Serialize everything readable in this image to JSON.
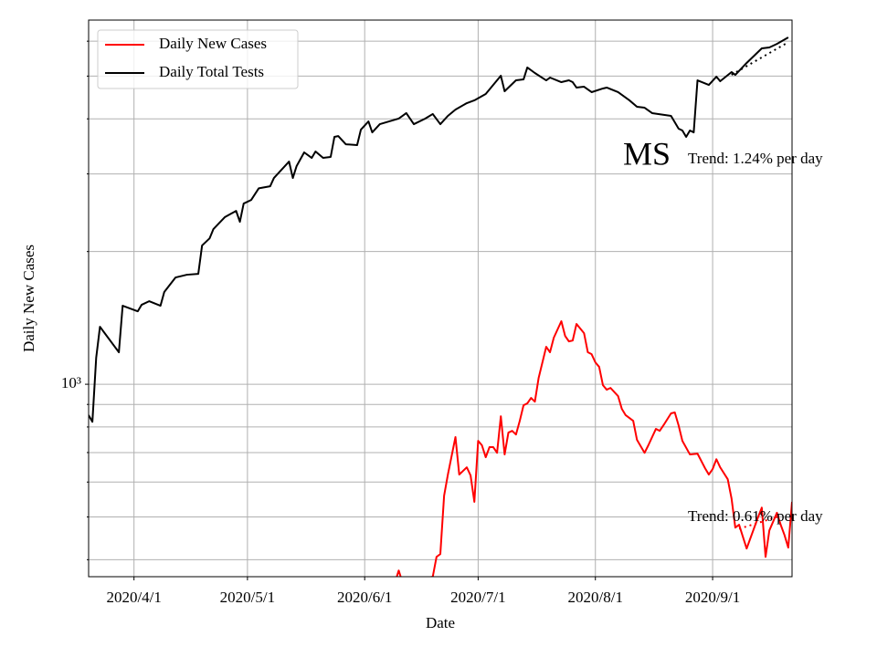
{
  "chart_data": {
    "type": "line",
    "xlabel": "Date",
    "ylabel": "Daily New Cases",
    "log_y": true,
    "grid": true,
    "legend": "upper left",
    "xlim": [
      "2020/3/20",
      "2020/9/22"
    ],
    "xticks": [
      "2020/4/1",
      "2020/5/1",
      "2020/6/1",
      "2020/7/1",
      "2020/8/1",
      "2020/9/1"
    ],
    "ylim": [
      366,
      6700
    ],
    "yticks": [
      {
        "value": 1000,
        "label": "10³"
      }
    ],
    "yminor": [
      400,
      500,
      600,
      700,
      800,
      900,
      2000,
      3000,
      4000,
      5000,
      6000
    ],
    "series": [
      {
        "name": "Daily New Cases",
        "color": "#ff0000",
        "x": [
          "2020/6/9",
          "2020/6/10",
          "2020/6/11",
          "2020/6/19",
          "2020/6/20",
          "2020/6/21",
          "2020/6/22",
          "2020/6/23",
          "2020/6/25",
          "2020/6/26",
          "2020/6/28",
          "2020/6/29",
          "2020/6/30",
          "2020/7/1",
          "2020/7/2",
          "2020/7/3",
          "2020/7/4",
          "2020/7/5",
          "2020/7/6",
          "2020/7/7",
          "2020/7/8",
          "2020/7/9",
          "2020/7/10",
          "2020/7/11",
          "2020/7/12",
          "2020/7/13",
          "2020/7/14",
          "2020/7/15",
          "2020/7/16",
          "2020/7/17",
          "2020/7/19",
          "2020/7/20",
          "2020/7/21",
          "2020/7/23",
          "2020/7/24",
          "2020/7/25",
          "2020/7/26",
          "2020/7/27",
          "2020/7/29",
          "2020/7/30",
          "2020/7/31",
          "2020/8/1",
          "2020/8/2",
          "2020/8/3",
          "2020/8/4",
          "2020/8/5",
          "2020/8/7",
          "2020/8/8",
          "2020/8/9",
          "2020/8/11",
          "2020/8/12",
          "2020/8/14",
          "2020/8/15",
          "2020/8/17",
          "2020/8/18",
          "2020/8/19",
          "2020/8/21",
          "2020/8/22",
          "2020/8/23",
          "2020/8/24",
          "2020/8/26",
          "2020/8/28",
          "2020/8/30",
          "2020/8/31",
          "2020/9/1",
          "2020/9/2",
          "2020/9/3",
          "2020/9/5",
          "2020/9/6",
          "2020/9/7",
          "2020/9/8",
          "2020/9/9",
          "2020/9/10",
          "2020/9/13",
          "2020/9/14",
          "2020/9/15",
          "2020/9/16",
          "2020/9/18",
          "2020/9/19",
          "2020/9/20",
          "2020/9/21",
          "2020/9/22"
        ],
        "values": [
          355,
          378,
          355,
          366,
          406,
          412,
          559,
          624,
          759,
          624,
          648,
          621,
          541,
          744,
          727,
          683,
          720,
          720,
          699,
          846,
          693,
          777,
          784,
          769,
          826,
          896,
          905,
          931,
          913,
          1034,
          1216,
          1182,
          1275,
          1390,
          1287,
          1251,
          1257,
          1370,
          1306,
          1182,
          1170,
          1121,
          1095,
          995,
          972,
          981,
          940,
          879,
          851,
          826,
          748,
          699,
          727,
          792,
          784,
          807,
          859,
          863,
          807,
          744,
          693,
          696,
          645,
          624,
          642,
          676,
          648,
          609,
          551,
          473,
          480,
          451,
          424,
          499,
          525,
          406,
          466,
          511,
          480,
          455,
          426,
          541
        ]
      },
      {
        "name": "Daily Total Tests",
        "color": "#000000",
        "x": [
          "2020/3/20",
          "2020/3/21",
          "2020/3/22",
          "2020/3/23",
          "2020/3/28",
          "2020/3/29",
          "2020/4/2",
          "2020/4/3",
          "2020/4/5",
          "2020/4/8",
          "2020/4/9",
          "2020/4/12",
          "2020/4/15",
          "2020/4/18",
          "2020/4/19",
          "2020/4/21",
          "2020/4/22",
          "2020/4/25",
          "2020/4/28",
          "2020/4/29",
          "2020/4/30",
          "2020/5/2",
          "2020/5/4",
          "2020/5/7",
          "2020/5/8",
          "2020/5/10",
          "2020/5/12",
          "2020/5/13",
          "2020/5/14",
          "2020/5/16",
          "2020/5/18",
          "2020/5/19",
          "2020/5/21",
          "2020/5/23",
          "2020/5/24",
          "2020/5/25",
          "2020/5/27",
          "2020/5/30",
          "2020/5/31",
          "2020/6/2",
          "2020/6/3",
          "2020/6/5",
          "2020/6/10",
          "2020/6/12",
          "2020/6/14",
          "2020/6/17",
          "2020/6/19",
          "2020/6/21",
          "2020/6/23",
          "2020/6/25",
          "2020/6/28",
          "2020/6/30",
          "2020/7/3",
          "2020/7/7",
          "2020/7/8",
          "2020/7/11",
          "2020/7/13",
          "2020/7/14",
          "2020/7/16",
          "2020/7/19",
          "2020/7/20",
          "2020/7/23",
          "2020/7/25",
          "2020/7/26",
          "2020/7/27",
          "2020/7/29",
          "2020/7/31",
          "2020/8/3",
          "2020/8/4",
          "2020/8/7",
          "2020/8/10",
          "2020/8/12",
          "2020/8/14",
          "2020/8/16",
          "2020/8/21",
          "2020/8/23",
          "2020/8/24",
          "2020/8/25",
          "2020/8/26",
          "2020/8/27",
          "2020/8/28",
          "2020/8/31",
          "2020/9/2",
          "2020/9/3",
          "2020/9/6",
          "2020/9/7",
          "2020/9/10",
          "2020/9/14",
          "2020/9/16",
          "2020/9/18",
          "2020/9/21"
        ],
        "values": [
          851,
          822,
          1148,
          1350,
          1182,
          1507,
          1464,
          1514,
          1543,
          1507,
          1619,
          1747,
          1772,
          1780,
          2064,
          2143,
          2249,
          2393,
          2473,
          2336,
          2570,
          2619,
          2783,
          2812,
          2937,
          3066,
          3199,
          2937,
          3126,
          3357,
          3262,
          3373,
          3262,
          3278,
          3641,
          3656,
          3503,
          3487,
          3781,
          3947,
          3727,
          3890,
          4005,
          4121,
          3890,
          4005,
          4102,
          3890,
          4062,
          4198,
          4342,
          4406,
          4554,
          5010,
          4620,
          4891,
          4915,
          5230,
          5082,
          4891,
          4962,
          4845,
          4891,
          4845,
          4709,
          4731,
          4598,
          4687,
          4709,
          4598,
          4406,
          4260,
          4239,
          4121,
          4062,
          3800,
          3764,
          3641,
          3764,
          3727,
          4891,
          4775,
          4985,
          4868,
          5107,
          5033,
          5356,
          5780,
          5808,
          5916,
          6120
        ]
      }
    ],
    "trend_lines": [
      {
        "color": "#000000",
        "x": [
          "2020/9/6",
          "2020/9/21"
        ],
        "values": [
          5033,
          5969
        ]
      },
      {
        "color": "#ff0000",
        "x": [
          "2020/9/8",
          "2020/9/19"
        ],
        "values": [
          470,
          503
        ]
      }
    ],
    "annotations": [
      {
        "text": "MS"
      },
      {
        "text": "Trend: 1.24% per day"
      },
      {
        "text": "Trend: 0.61% per day"
      }
    ]
  }
}
